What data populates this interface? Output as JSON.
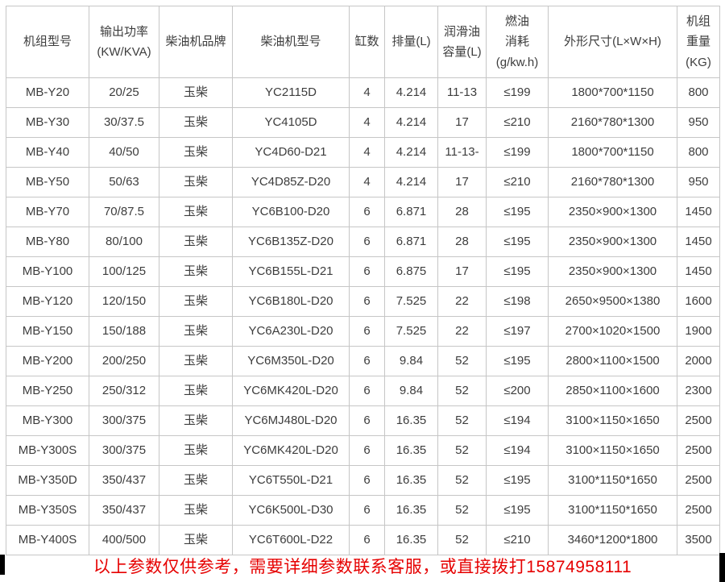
{
  "colors": {
    "background": "#ffffff",
    "border": "#c6c6c6",
    "cell_text": "#3d3d3d",
    "notice_red": "#e60000",
    "artifact_black": "#000000"
  },
  "table": {
    "columns": [
      "机组型号",
      "输出功率\n(KW/KVA)",
      "柴油机品牌",
      "柴油机型号",
      "缸数",
      "排量(L)",
      "润滑油\n容量(L)",
      "燃油\n消耗\n(g/kw.h)",
      "外形尺寸(L×W×H)",
      "机组\n重量\n(KG)"
    ],
    "rows": [
      [
        "MB-Y20",
        "20/25",
        "玉柴",
        "YC2115D",
        "4",
        "4.214",
        "11-13",
        "≤199",
        "1800*700*1150",
        "800"
      ],
      [
        "MB-Y30",
        "30/37.5",
        "玉柴",
        "YC4105D",
        "4",
        "4.214",
        "17",
        "≤210",
        "2160*780*1300",
        "950"
      ],
      [
        "MB-Y40",
        "40/50",
        "玉柴",
        "YC4D60-D21",
        "4",
        "4.214",
        "11-13-",
        "≤199",
        "1800*700*1150",
        "800"
      ],
      [
        "MB-Y50",
        "50/63",
        "玉柴",
        "YC4D85Z-D20",
        "4",
        "4.214",
        "17",
        "≤210",
        "2160*780*1300",
        "950"
      ],
      [
        "MB-Y70",
        "70/87.5",
        "玉柴",
        "YC6B100-D20",
        "6",
        "6.871",
        "28",
        "≤195",
        "2350×900×1300",
        "1450"
      ],
      [
        "MB-Y80",
        "80/100",
        "玉柴",
        "YC6B135Z-D20",
        "6",
        "6.871",
        "28",
        "≤195",
        "2350×900×1300",
        "1450"
      ],
      [
        "MB-Y100",
        "100/125",
        "玉柴",
        "YC6B155L-D21",
        "6",
        "6.875",
        "17",
        "≤195",
        "2350×900×1300",
        "1450"
      ],
      [
        "MB-Y120",
        "120/150",
        "玉柴",
        "YC6B180L-D20",
        "6",
        "7.525",
        "22",
        "≤198",
        "2650×9500×1380",
        "1600"
      ],
      [
        "MB-Y150",
        "150/188",
        "玉柴",
        "YC6A230L-D20",
        "6",
        "7.525",
        "22",
        "≤197",
        "2700×1020×1500",
        "1900"
      ],
      [
        "MB-Y200",
        "200/250",
        "玉柴",
        "YC6M350L-D20",
        "6",
        "9.84",
        "52",
        "≤195",
        "2800×1100×1500",
        "2000"
      ],
      [
        "MB-Y250",
        "250/312",
        "玉柴",
        "YC6MK420L-D20",
        "6",
        "9.84",
        "52",
        "≤200",
        "2850×1100×1600",
        "2300"
      ],
      [
        "MB-Y300",
        "300/375",
        "玉柴",
        "YC6MJ480L-D20",
        "6",
        "16.35",
        "52",
        "≤194",
        "3100×1150×1650",
        "2500"
      ],
      [
        "MB-Y300S",
        "300/375",
        "玉柴",
        "YC6MK420L-D20",
        "6",
        "16.35",
        "52",
        "≤194",
        "3100×1150×1650",
        "2500"
      ],
      [
        "MB-Y350D",
        "350/437",
        "玉柴",
        "YC6T550L-D21",
        "6",
        "16.35",
        "52",
        "≤195",
        "3100*1150*1650",
        "2500"
      ],
      [
        "MB-Y350S",
        "350/437",
        "玉柴",
        "YC6K500L-D30",
        "6",
        "16.35",
        "52",
        "≤195",
        "3100*1150*1650",
        "2500"
      ],
      [
        "MB-Y400S",
        "400/500",
        "玉柴",
        "YC6T600L-D22",
        "6",
        "16.35",
        "52",
        "≤210",
        "3460*1200*1800",
        "3500"
      ]
    ]
  },
  "footer": {
    "notice": "以上参数仅供参考，需要详细参数联系客服，或直接拨打15874958111"
  }
}
